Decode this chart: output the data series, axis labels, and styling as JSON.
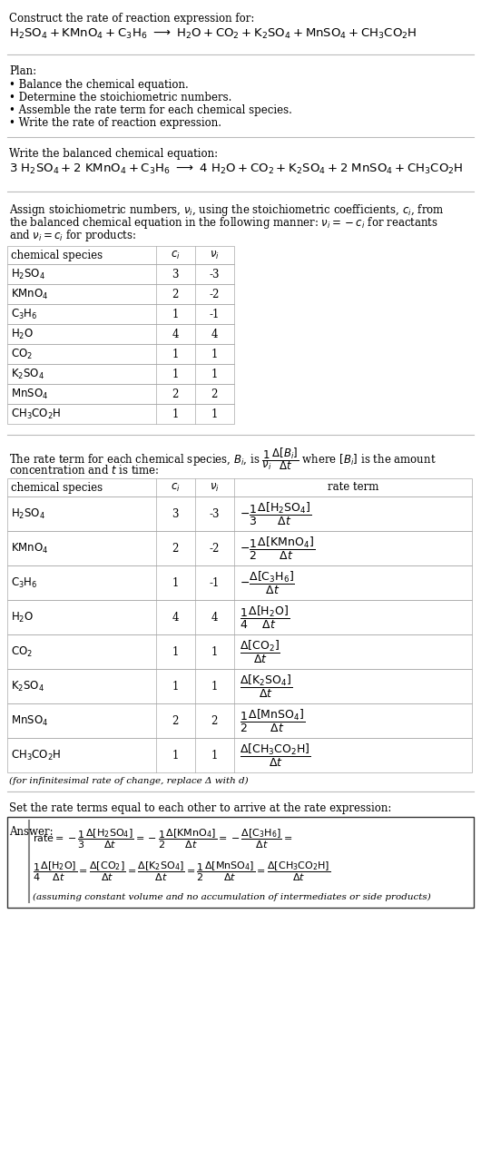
{
  "bg_color": "#ffffff",
  "title_line1": "Construct the rate of reaction expression for:",
  "plan_header": "Plan:",
  "plan_items": [
    "• Balance the chemical equation.",
    "• Determine the stoichiometric numbers.",
    "• Assemble the rate term for each chemical species.",
    "• Write the rate of reaction expression."
  ],
  "balanced_header": "Write the balanced chemical equation:",
  "stoich_intro_lines": [
    "Assign stoichiometric numbers, $\\nu_i$, using the stoichiometric coefficients, $c_i$, from",
    "the balanced chemical equation in the following manner: $\\nu_i = -c_i$ for reactants",
    "and $\\nu_i = c_i$ for products:"
  ],
  "table1_species": [
    "$\\mathrm{H_2SO_4}$",
    "$\\mathrm{KMnO_4}$",
    "$\\mathrm{C_3H_6}$",
    "$\\mathrm{H_2O}$",
    "$\\mathrm{CO_2}$",
    "$\\mathrm{K_2SO_4}$",
    "$\\mathrm{MnSO_4}$",
    "$\\mathrm{CH_3CO_2H}$"
  ],
  "table1_ci": [
    "3",
    "2",
    "1",
    "4",
    "1",
    "1",
    "2",
    "1"
  ],
  "table1_vi": [
    "-3",
    "-2",
    "-1",
    "4",
    "1",
    "1",
    "2",
    "1"
  ],
  "rate_term_line1": "The rate term for each chemical species, $B_i$, is $\\dfrac{1}{\\nu_i}\\dfrac{\\Delta[B_i]}{\\Delta t}$ where $[B_i]$ is the amount",
  "rate_term_line2": "concentration and $t$ is time:",
  "table2_species": [
    "$\\mathrm{H_2SO_4}$",
    "$\\mathrm{KMnO_4}$",
    "$\\mathrm{C_3H_6}$",
    "$\\mathrm{H_2O}$",
    "$\\mathrm{CO_2}$",
    "$\\mathrm{K_2SO_4}$",
    "$\\mathrm{MnSO_4}$",
    "$\\mathrm{CH_3CO_2H}$"
  ],
  "table2_ci": [
    "3",
    "2",
    "1",
    "4",
    "1",
    "1",
    "2",
    "1"
  ],
  "table2_vi": [
    "-3",
    "-2",
    "-1",
    "4",
    "1",
    "1",
    "2",
    "1"
  ],
  "table2_rate": [
    "$-\\dfrac{1}{3}\\dfrac{\\Delta[\\mathrm{H_2SO_4}]}{\\Delta t}$",
    "$-\\dfrac{1}{2}\\dfrac{\\Delta[\\mathrm{KMnO_4}]}{\\Delta t}$",
    "$-\\dfrac{\\Delta[\\mathrm{C_3H_6}]}{\\Delta t}$",
    "$\\dfrac{1}{4}\\dfrac{\\Delta[\\mathrm{H_2O}]}{\\Delta t}$",
    "$\\dfrac{\\Delta[\\mathrm{CO_2}]}{\\Delta t}$",
    "$\\dfrac{\\Delta[\\mathrm{K_2SO_4}]}{\\Delta t}$",
    "$\\dfrac{1}{2}\\dfrac{\\Delta[\\mathrm{MnSO_4}]}{\\Delta t}$",
    "$\\dfrac{\\Delta[\\mathrm{CH_3CO_2H}]}{\\Delta t}$"
  ],
  "infinitesimal_note": "(for infinitesimal rate of change, replace Δ with d)",
  "answer_header": "Set the rate terms equal to each other to arrive at the rate expression:",
  "answer_note": "(assuming constant volume and no accumulation of intermediates or side products)",
  "fs": 8.5,
  "fs_eq": 9.5,
  "fs_small": 7.5
}
